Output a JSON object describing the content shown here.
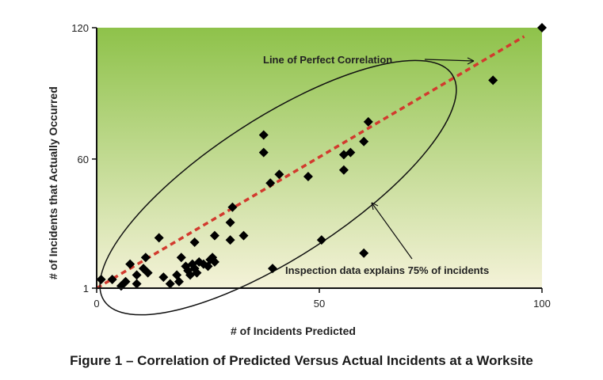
{
  "caption": "Figure 1 – Correlation of Predicted Versus Actual Incidents at a Worksite",
  "colors": {
    "bg_top": "#8ec24a",
    "bg_bottom": "#f4f2d8",
    "point": "#000000",
    "line": "#d23a2e"
  },
  "chart_data": {
    "type": "scatter",
    "xlabel": "# of Incidents Predicted",
    "ylabel": "# of Incidents that Actually Occurred",
    "xlim": [
      0,
      100
    ],
    "ylim": [
      1,
      120
    ],
    "xticks": [
      {
        "value": 0,
        "label": "0"
      },
      {
        "value": 50,
        "label": "50"
      },
      {
        "value": 100,
        "label": "100"
      }
    ],
    "yticks": [
      {
        "value": 1,
        "label": "1"
      },
      {
        "value": 60,
        "label": "60"
      },
      {
        "value": 120,
        "label": "120"
      }
    ],
    "grid": false,
    "reference_line": {
      "label": "Line of Perfect Correlation",
      "from": [
        0,
        1
      ],
      "to": [
        96,
        116
      ]
    },
    "ellipse_annotation": {
      "label": "Inspection data explains 75% of incidents"
    },
    "points": [
      {
        "x": 1,
        "y": 5
      },
      {
        "x": 3.5,
        "y": 5
      },
      {
        "x": 5.5,
        "y": 2
      },
      {
        "x": 6.5,
        "y": 4
      },
      {
        "x": 7.5,
        "y": 12
      },
      {
        "x": 9,
        "y": 7
      },
      {
        "x": 9,
        "y": 3
      },
      {
        "x": 10.5,
        "y": 10
      },
      {
        "x": 11,
        "y": 15
      },
      {
        "x": 11.5,
        "y": 8
      },
      {
        "x": 14,
        "y": 24
      },
      {
        "x": 15,
        "y": 6
      },
      {
        "x": 16.5,
        "y": 3
      },
      {
        "x": 18,
        "y": 7
      },
      {
        "x": 18.5,
        "y": 4
      },
      {
        "x": 19,
        "y": 15
      },
      {
        "x": 20,
        "y": 11
      },
      {
        "x": 20.5,
        "y": 9
      },
      {
        "x": 21,
        "y": 7
      },
      {
        "x": 21.5,
        "y": 12
      },
      {
        "x": 22,
        "y": 10
      },
      {
        "x": 22,
        "y": 22
      },
      {
        "x": 22.5,
        "y": 8
      },
      {
        "x": 23,
        "y": 13
      },
      {
        "x": 24,
        "y": 12
      },
      {
        "x": 25,
        "y": 11
      },
      {
        "x": 25.5,
        "y": 14
      },
      {
        "x": 26,
        "y": 15
      },
      {
        "x": 26.5,
        "y": 13
      },
      {
        "x": 26.5,
        "y": 25
      },
      {
        "x": 30,
        "y": 31
      },
      {
        "x": 30,
        "y": 23
      },
      {
        "x": 30.5,
        "y": 38
      },
      {
        "x": 33,
        "y": 25
      },
      {
        "x": 37.5,
        "y": 71
      },
      {
        "x": 37.5,
        "y": 63
      },
      {
        "x": 39,
        "y": 49
      },
      {
        "x": 39.5,
        "y": 10
      },
      {
        "x": 41,
        "y": 53
      },
      {
        "x": 47.5,
        "y": 52
      },
      {
        "x": 50.5,
        "y": 23
      },
      {
        "x": 55.5,
        "y": 55
      },
      {
        "x": 55.5,
        "y": 62
      },
      {
        "x": 57,
        "y": 63
      },
      {
        "x": 60,
        "y": 68
      },
      {
        "x": 60,
        "y": 17
      },
      {
        "x": 61,
        "y": 77
      },
      {
        "x": 89,
        "y": 96
      },
      {
        "x": 100,
        "y": 120
      }
    ]
  }
}
